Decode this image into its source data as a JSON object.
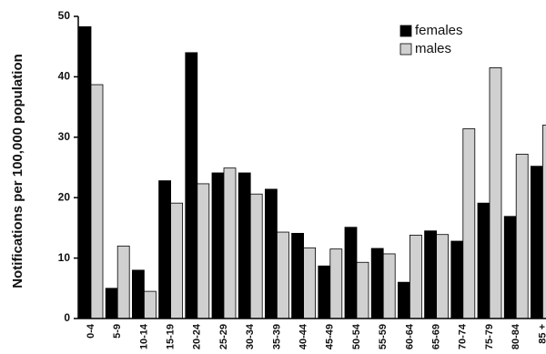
{
  "chart_data": {
    "type": "bar",
    "y_label": "Notifications per 100,000 population",
    "categories": [
      "0-4",
      "5-9",
      "10-14",
      "15-19",
      "20-24",
      "25-29",
      "30-34",
      "35-39",
      "40-44",
      "45-49",
      "50-54",
      "55-59",
      "60-64",
      "65-69",
      "70-74",
      "75-79",
      "80-84",
      "85 +"
    ],
    "series": [
      {
        "name": "females",
        "color": "#000000",
        "values": [
          48.3,
          5,
          8,
          22.8,
          44,
          24.1,
          24.1,
          21.4,
          14.1,
          8.7,
          15.1,
          11.6,
          6,
          14.5,
          12.8,
          19.1,
          16.9,
          25.2
        ]
      },
      {
        "name": "males",
        "color": "#d0d0d0",
        "values": [
          38.7,
          12,
          4.5,
          19.1,
          22.3,
          24.9,
          20.6,
          14.3,
          11.7,
          11.5,
          9.3,
          10.7,
          13.8,
          13.9,
          31.4,
          41.5,
          27.2,
          32
        ]
      }
    ],
    "ylim": [
      0,
      50
    ],
    "yticks": [
      0,
      10,
      20,
      30,
      40,
      50
    ],
    "legend": "upper right"
  }
}
